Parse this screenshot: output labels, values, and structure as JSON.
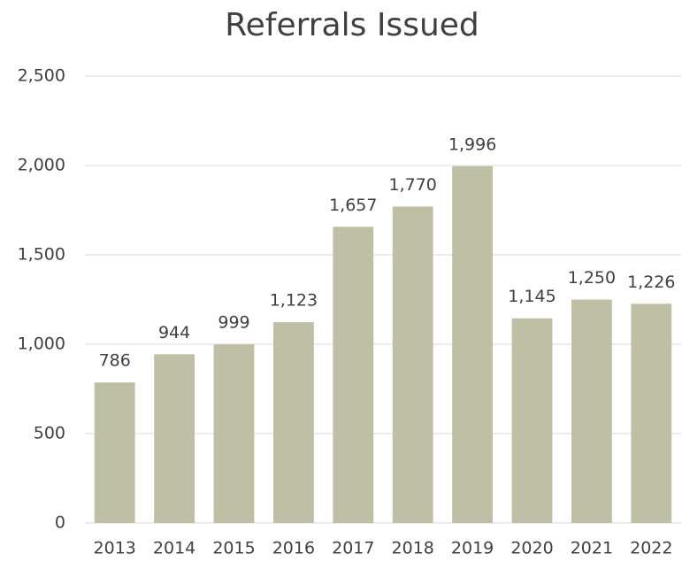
{
  "chart_data": {
    "type": "bar",
    "title": "Referrals Issued",
    "categories": [
      "2013",
      "2014",
      "2015",
      "2016",
      "2017",
      "2018",
      "2019",
      "2020",
      "2021",
      "2022"
    ],
    "values": [
      786,
      944,
      999,
      1123,
      1657,
      1770,
      1996,
      1145,
      1250,
      1226
    ],
    "value_labels": [
      "786",
      "944",
      "999",
      "1,123",
      "1,657",
      "1,770",
      "1,996",
      "1,145",
      "1,250",
      "1,226"
    ],
    "color": "#bfbfa5",
    "ylim": [
      0,
      2500
    ],
    "yticks": [
      0,
      500,
      {
        "value": 1000,
        "label": "1,000"
      },
      {
        "value": 1500,
        "label": "1,500"
      },
      {
        "value": 2000,
        "label": "2,000"
      },
      {
        "value": 2500,
        "label": "2,500"
      }
    ],
    "grid": true
  }
}
